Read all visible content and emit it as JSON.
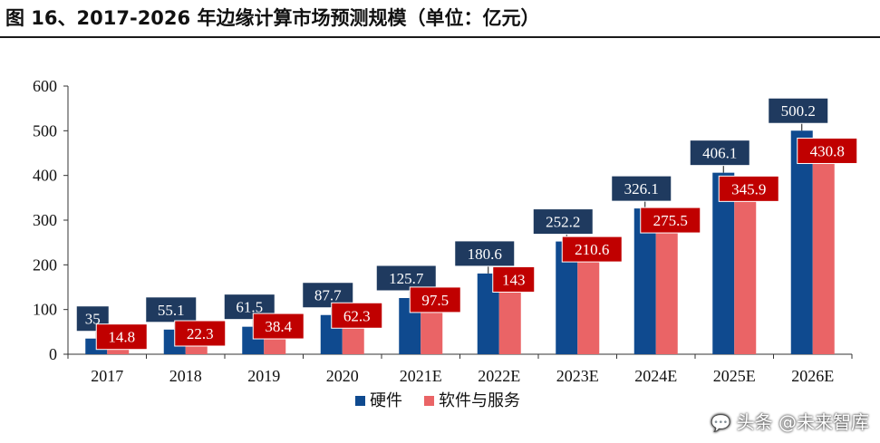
{
  "title": "图 16、2017-2026 年边缘计算市场预测规模（单位：亿元）",
  "watermark": {
    "icon": "wechat-icon",
    "text": "头条 @未来智库"
  },
  "colors": {
    "hardware": "#0f4a8f",
    "software": "#ea6466",
    "hardware_label_bg": "#1f3a5f",
    "software_label_bg": "#c00000"
  },
  "chart_data": {
    "type": "bar",
    "categories": [
      "2017",
      "2018",
      "2019",
      "2020",
      "2021E",
      "2022E",
      "2023E",
      "2024E",
      "2025E",
      "2026E"
    ],
    "series": [
      {
        "name": "硬件",
        "values": [
          35,
          55.1,
          61.5,
          87.7,
          125.7,
          180.6,
          252.2,
          326.1,
          406.1,
          500.2
        ]
      },
      {
        "name": "软件与服务",
        "values": [
          14.8,
          22.3,
          38.4,
          62.3,
          97.5,
          143,
          210.6,
          275.5,
          345.9,
          430.8
        ]
      }
    ],
    "ylim": [
      0,
      600
    ],
    "yticks": [
      0,
      100,
      200,
      300,
      400,
      500,
      600
    ],
    "xlabel": "",
    "ylabel": "",
    "legend_position": "bottom-center",
    "grid": false
  }
}
